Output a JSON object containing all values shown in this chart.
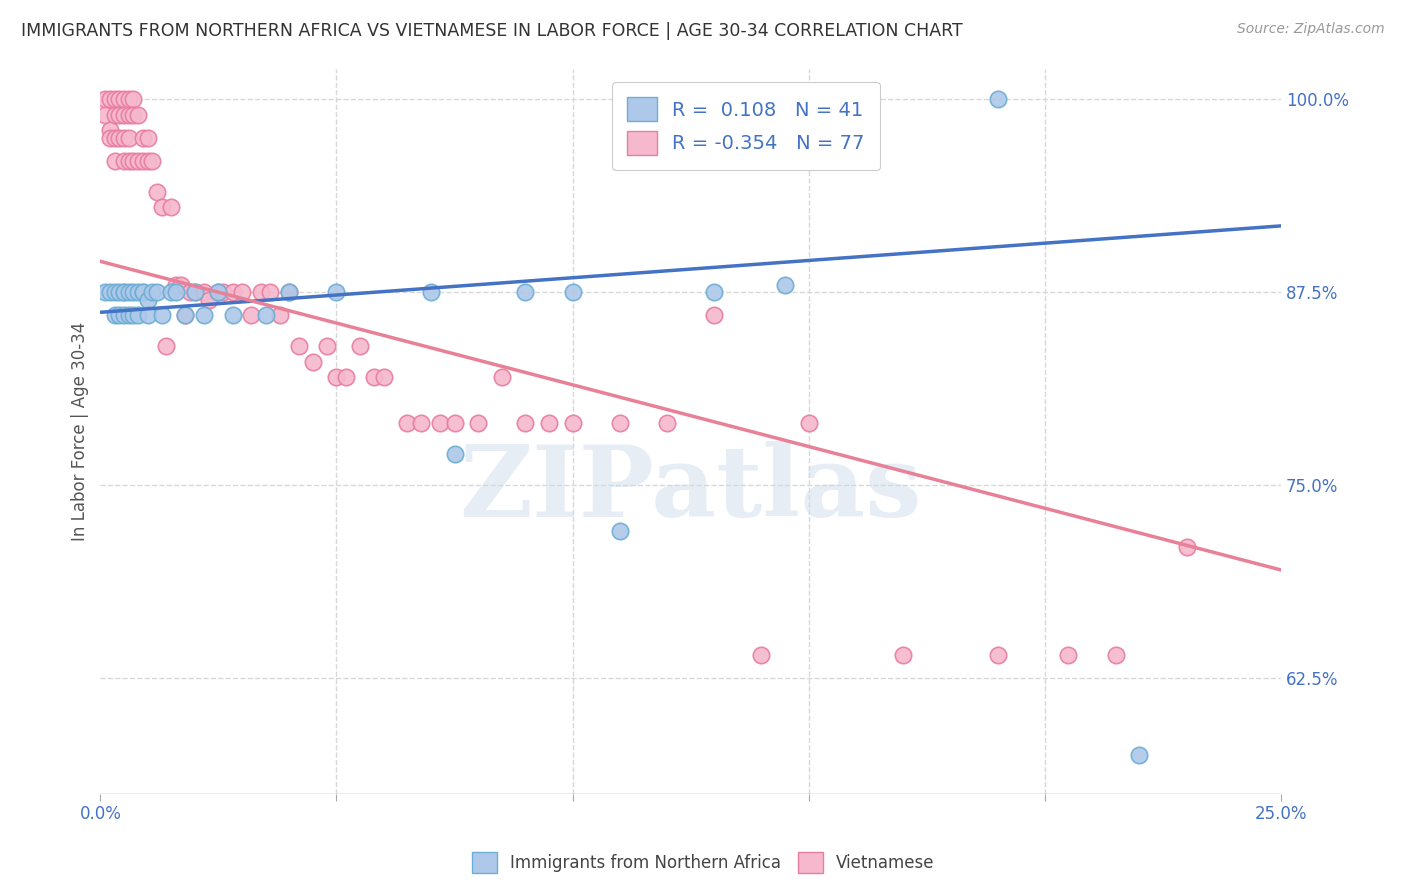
{
  "title": "IMMIGRANTS FROM NORTHERN AFRICA VS VIETNAMESE IN LABOR FORCE | AGE 30-34 CORRELATION CHART",
  "source": "Source: ZipAtlas.com",
  "ylabel": "In Labor Force | Age 30-34",
  "xlim": [
    0.0,
    0.25
  ],
  "ylim": [
    0.55,
    1.02
  ],
  "xticks": [
    0.0,
    0.05,
    0.1,
    0.15,
    0.2,
    0.25
  ],
  "xticklabels": [
    "0.0%",
    "",
    "",
    "",
    "",
    "25.0%"
  ],
  "yticks_right": [
    0.625,
    0.75,
    0.875,
    1.0
  ],
  "ytickslabels_right": [
    "62.5%",
    "75.0%",
    "87.5%",
    "100.0%"
  ],
  "blue_R": "0.108",
  "blue_N": "41",
  "pink_R": "-0.354",
  "pink_N": "77",
  "blue_color": "#adc8e8",
  "pink_color": "#f5b8cc",
  "blue_edge_color": "#6baed6",
  "pink_edge_color": "#e87da0",
  "blue_line_color": "#4472c4",
  "pink_line_color": "#e88098",
  "legend_text_color": "#4472c4",
  "watermark": "ZIPatlas",
  "blue_x": [
    0.001,
    0.002,
    0.003,
    0.003,
    0.004,
    0.004,
    0.005,
    0.005,
    0.005,
    0.006,
    0.006,
    0.007,
    0.007,
    0.008,
    0.008,
    0.009,
    0.009,
    0.01,
    0.01,
    0.011,
    0.012,
    0.013,
    0.015,
    0.016,
    0.018,
    0.02,
    0.022,
    0.025,
    0.028,
    0.035,
    0.04,
    0.05,
    0.07,
    0.075,
    0.09,
    0.1,
    0.11,
    0.13,
    0.145,
    0.19,
    0.22
  ],
  "blue_y": [
    0.875,
    0.875,
    0.875,
    0.86,
    0.875,
    0.86,
    0.875,
    0.86,
    0.875,
    0.875,
    0.86,
    0.875,
    0.86,
    0.875,
    0.86,
    0.875,
    0.875,
    0.87,
    0.86,
    0.875,
    0.875,
    0.86,
    0.875,
    0.875,
    0.86,
    0.875,
    0.86,
    0.875,
    0.86,
    0.86,
    0.875,
    0.875,
    0.875,
    0.77,
    0.875,
    0.875,
    0.72,
    0.875,
    0.88,
    1.0,
    0.575
  ],
  "pink_x": [
    0.001,
    0.001,
    0.002,
    0.002,
    0.002,
    0.003,
    0.003,
    0.003,
    0.003,
    0.004,
    0.004,
    0.004,
    0.005,
    0.005,
    0.005,
    0.005,
    0.006,
    0.006,
    0.006,
    0.006,
    0.007,
    0.007,
    0.007,
    0.008,
    0.008,
    0.009,
    0.009,
    0.01,
    0.01,
    0.011,
    0.012,
    0.013,
    0.014,
    0.015,
    0.016,
    0.017,
    0.018,
    0.019,
    0.02,
    0.022,
    0.023,
    0.025,
    0.026,
    0.028,
    0.03,
    0.032,
    0.034,
    0.036,
    0.038,
    0.04,
    0.042,
    0.045,
    0.048,
    0.05,
    0.052,
    0.055,
    0.058,
    0.06,
    0.065,
    0.068,
    0.072,
    0.075,
    0.08,
    0.085,
    0.09,
    0.095,
    0.1,
    0.11,
    0.12,
    0.13,
    0.14,
    0.15,
    0.17,
    0.19,
    0.205,
    0.215,
    0.23
  ],
  "pink_y": [
    1.0,
    0.99,
    1.0,
    0.98,
    0.975,
    1.0,
    0.99,
    0.975,
    0.96,
    1.0,
    0.99,
    0.975,
    1.0,
    0.99,
    0.975,
    0.96,
    1.0,
    0.99,
    0.975,
    0.96,
    1.0,
    0.99,
    0.96,
    0.99,
    0.96,
    0.975,
    0.96,
    0.96,
    0.975,
    0.96,
    0.94,
    0.93,
    0.84,
    0.93,
    0.88,
    0.88,
    0.86,
    0.875,
    0.875,
    0.875,
    0.87,
    0.875,
    0.875,
    0.875,
    0.875,
    0.86,
    0.875,
    0.875,
    0.86,
    0.875,
    0.84,
    0.83,
    0.84,
    0.82,
    0.82,
    0.84,
    0.82,
    0.82,
    0.79,
    0.79,
    0.79,
    0.79,
    0.79,
    0.82,
    0.79,
    0.79,
    0.79,
    0.79,
    0.79,
    0.86,
    0.64,
    0.79,
    0.64,
    0.64,
    0.64,
    0.64,
    0.71
  ],
  "background_color": "#ffffff",
  "grid_color": "#d8d8d8"
}
